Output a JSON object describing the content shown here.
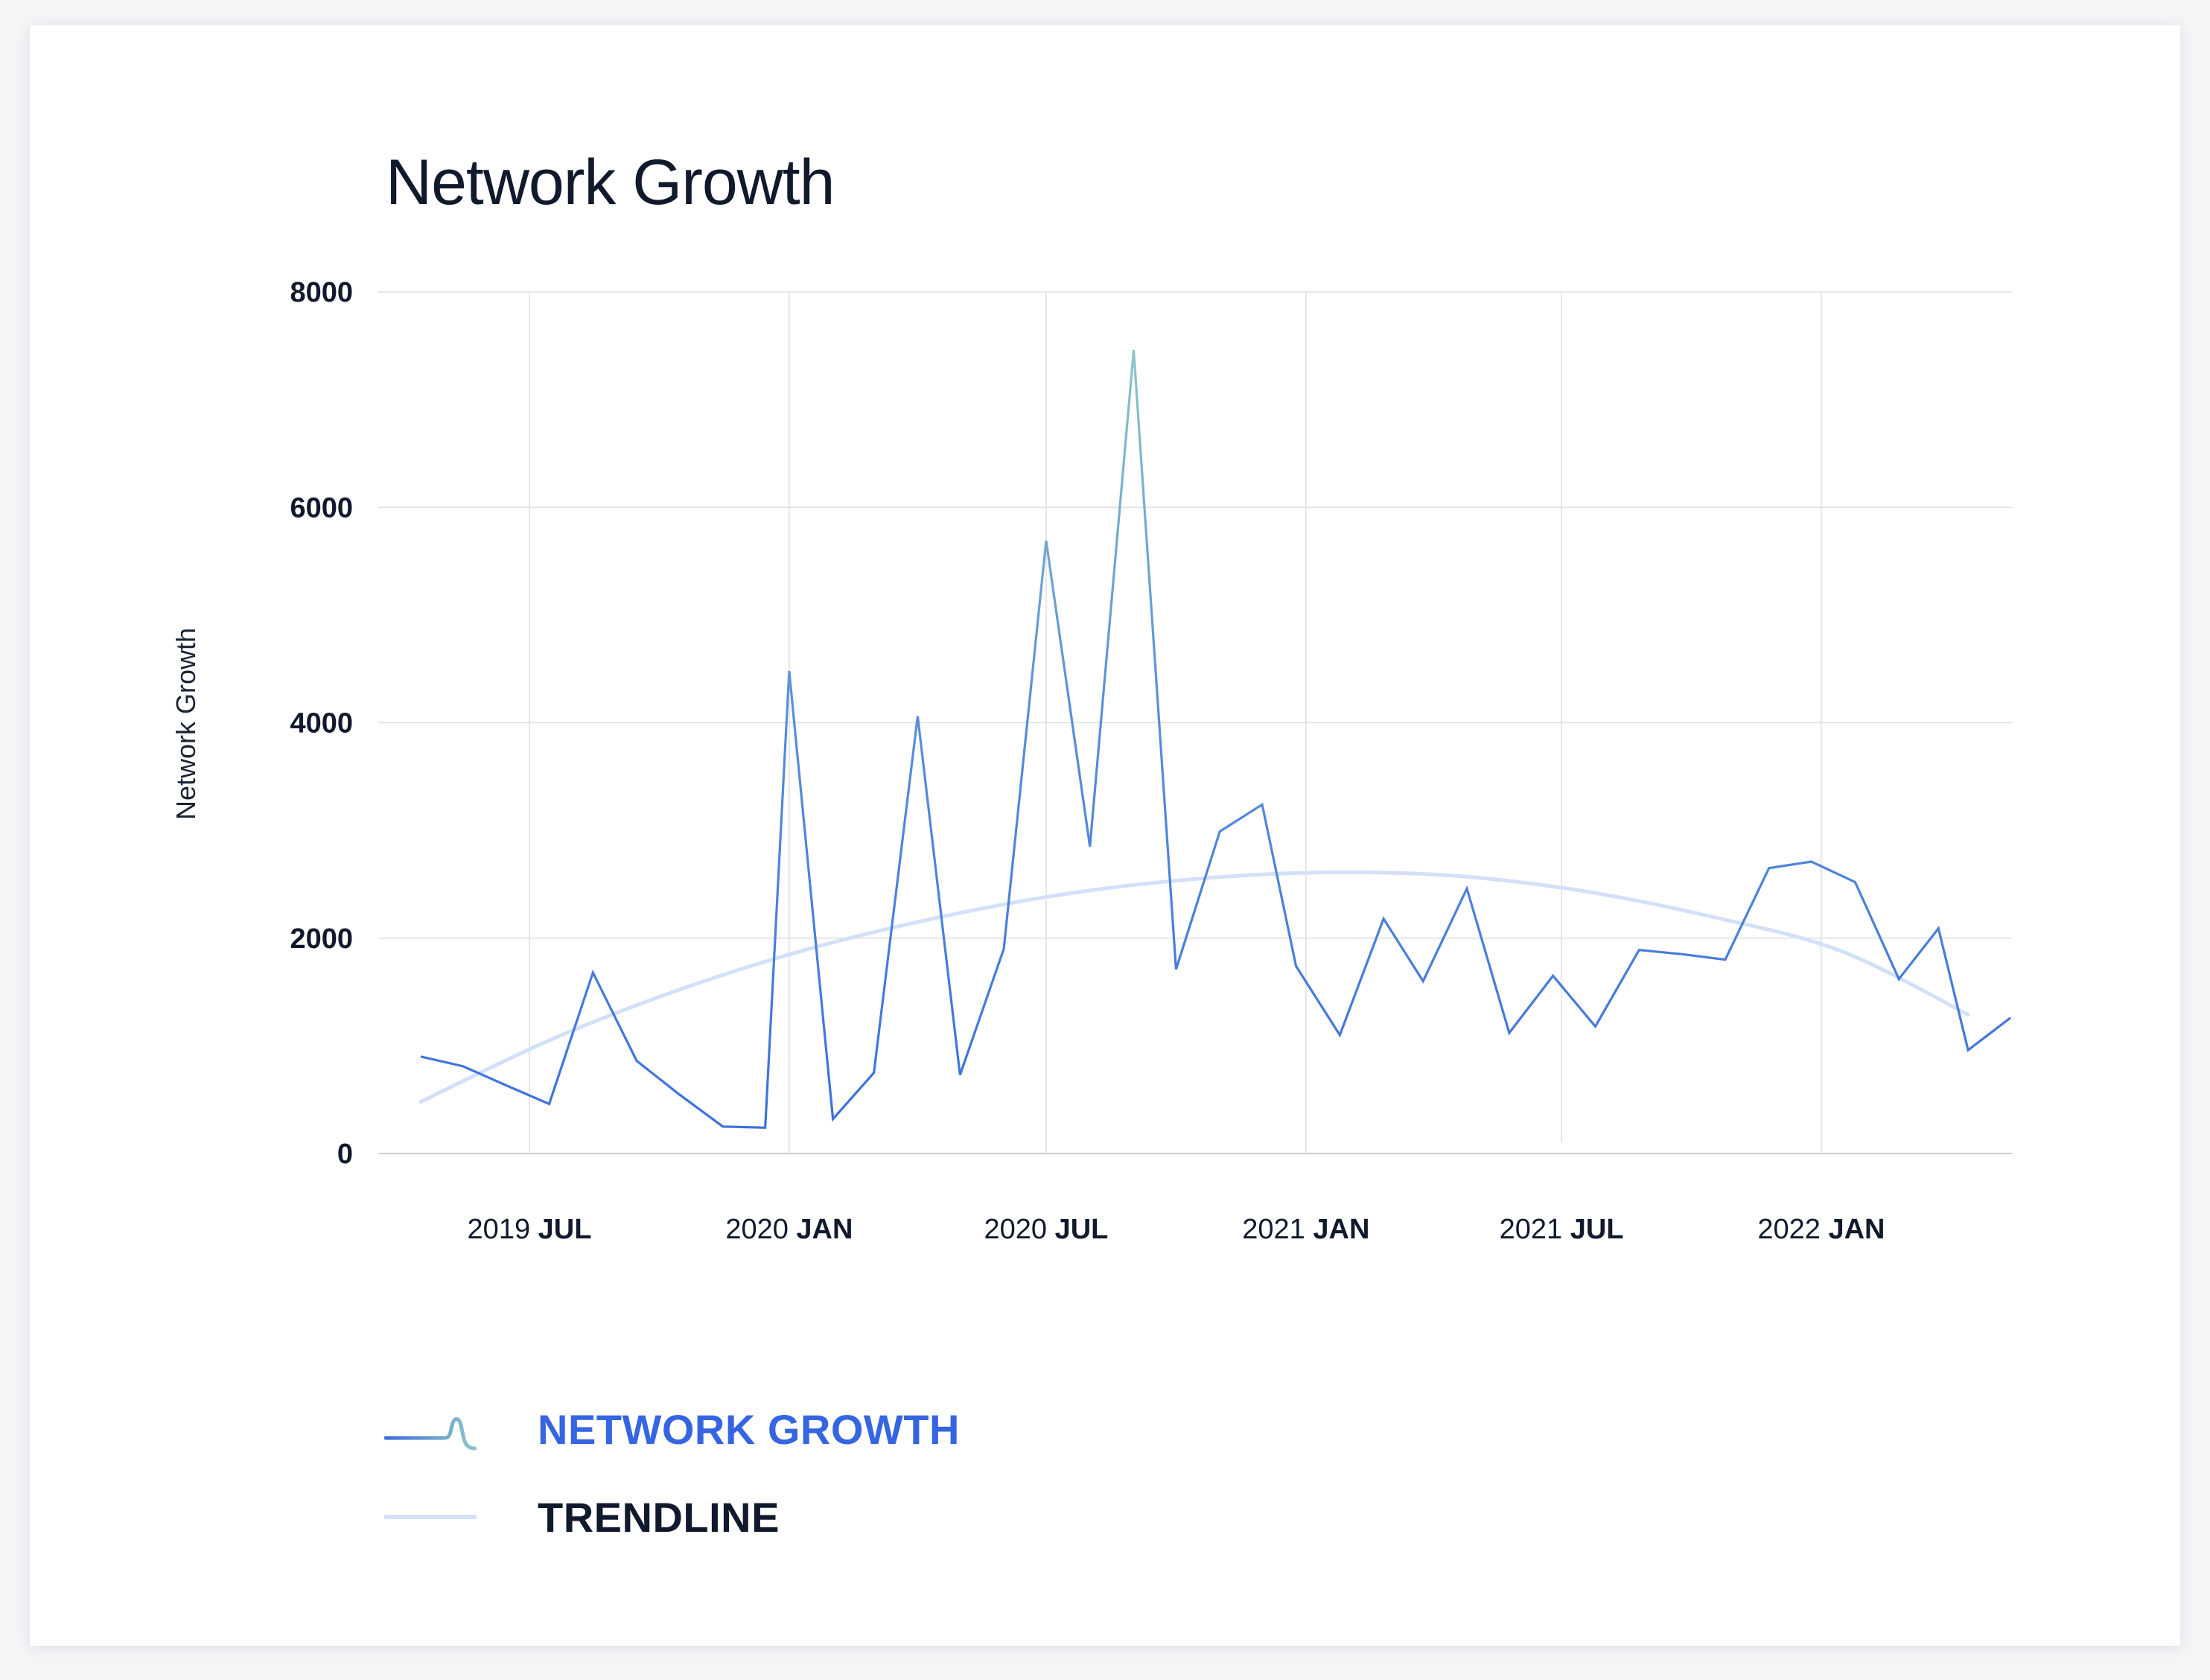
{
  "chart_data": {
    "type": "line",
    "title": "Network Growth",
    "ylabel": "Network Growth",
    "xlabel": "",
    "ylim": [
      0,
      8000
    ],
    "yticks": [
      "0",
      "2000",
      "4000",
      "6000",
      "8000"
    ],
    "xticks": [
      {
        "year": "2019",
        "month": "JUL",
        "date": "2019-07-01"
      },
      {
        "year": "2020",
        "month": "JAN",
        "date": "2020-01-01"
      },
      {
        "year": "2020",
        "month": "JUL",
        "date": "2020-07-01"
      },
      {
        "year": "2021",
        "month": "JAN",
        "date": "2021-01-01"
      },
      {
        "year": "2021",
        "month": "JUL",
        "date": "2021-07-01"
      },
      {
        "year": "2022",
        "month": "JAN",
        "date": "2022-01-01"
      }
    ],
    "xlim": [
      "2019-04-15",
      "2022-05-15"
    ],
    "grid": true,
    "legend_position": "bottom-left",
    "series": [
      {
        "name": "NETWORK GROWTH",
        "color": "#3b6fdc",
        "peak_color": "#8ec6c8",
        "points": [
          {
            "x": "2019-04-15",
            "y": 900
          },
          {
            "x": "2019-05-15",
            "y": 810
          },
          {
            "x": "2019-06-15",
            "y": 630
          },
          {
            "x": "2019-07-15",
            "y": 460
          },
          {
            "x": "2019-08-15",
            "y": 1680
          },
          {
            "x": "2019-09-15",
            "y": 860
          },
          {
            "x": "2019-10-15",
            "y": 550
          },
          {
            "x": "2019-11-15",
            "y": 250
          },
          {
            "x": "2019-12-15",
            "y": 240
          },
          {
            "x": "2020-01-01",
            "y": 4480
          },
          {
            "x": "2020-02-01",
            "y": 320
          },
          {
            "x": "2020-03-01",
            "y": 750
          },
          {
            "x": "2020-04-01",
            "y": 4060
          },
          {
            "x": "2020-05-01",
            "y": 730
          },
          {
            "x": "2020-06-01",
            "y": 1900
          },
          {
            "x": "2020-07-01",
            "y": 5690
          },
          {
            "x": "2020-08-01",
            "y": 2850
          },
          {
            "x": "2020-09-01",
            "y": 7460
          },
          {
            "x": "2020-10-01",
            "y": 1710
          },
          {
            "x": "2020-11-01",
            "y": 2990
          },
          {
            "x": "2020-12-01",
            "y": 3240
          },
          {
            "x": "2020-12-25",
            "y": 1740
          },
          {
            "x": "2021-01-25",
            "y": 1100
          },
          {
            "x": "2021-02-25",
            "y": 2180
          },
          {
            "x": "2021-03-25",
            "y": 1600
          },
          {
            "x": "2021-04-25",
            "y": 2460
          },
          {
            "x": "2021-05-25",
            "y": 1120
          },
          {
            "x": "2021-06-25",
            "y": 1650
          },
          {
            "x": "2021-07-25",
            "y": 1180
          },
          {
            "x": "2021-08-25",
            "y": 1890
          },
          {
            "x": "2021-09-25",
            "y": 1850
          },
          {
            "x": "2021-10-25",
            "y": 1800
          },
          {
            "x": "2021-11-25",
            "y": 2650
          },
          {
            "x": "2021-12-25",
            "y": 2710
          },
          {
            "x": "2022-01-25",
            "y": 2520
          },
          {
            "x": "2022-02-25",
            "y": 1620
          },
          {
            "x": "2022-03-25",
            "y": 2090
          },
          {
            "x": "2022-04-15",
            "y": 960
          },
          {
            "x": "2022-05-15",
            "y": 1260
          }
        ]
      },
      {
        "name": "TRENDLINE",
        "color": "#d3e0f8",
        "points": [
          {
            "x": "2019-04-15",
            "y": 480
          },
          {
            "x": "2019-07-15",
            "y": 1050
          },
          {
            "x": "2019-10-15",
            "y": 1520
          },
          {
            "x": "2020-01-15",
            "y": 1900
          },
          {
            "x": "2020-04-15",
            "y": 2190
          },
          {
            "x": "2020-07-15",
            "y": 2410
          },
          {
            "x": "2020-10-15",
            "y": 2550
          },
          {
            "x": "2021-01-15",
            "y": 2610
          },
          {
            "x": "2021-04-15",
            "y": 2580
          },
          {
            "x": "2021-07-15",
            "y": 2440
          },
          {
            "x": "2021-10-15",
            "y": 2200
          },
          {
            "x": "2022-01-15",
            "y": 1880
          },
          {
            "x": "2022-04-15",
            "y": 1290
          }
        ]
      }
    ]
  }
}
